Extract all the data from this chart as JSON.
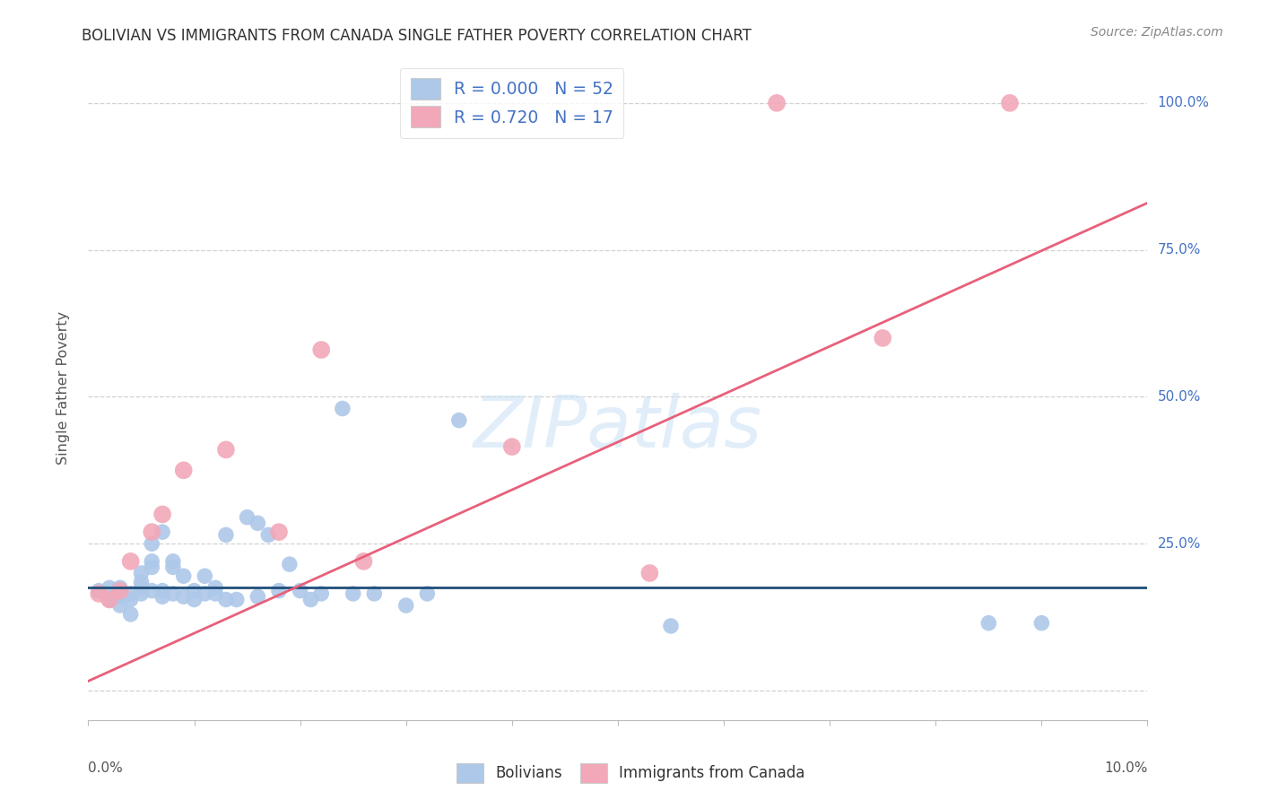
{
  "title": "BOLIVIAN VS IMMIGRANTS FROM CANADA SINGLE FATHER POVERTY CORRELATION CHART",
  "source": "Source: ZipAtlas.com",
  "ylabel": "Single Father Poverty",
  "ytick_values": [
    0.0,
    0.25,
    0.5,
    0.75,
    1.0
  ],
  "ytick_labels": [
    "",
    "25.0%",
    "50.0%",
    "75.0%",
    "100.0%"
  ],
  "xtick_values": [
    0.0,
    0.01,
    0.02,
    0.03,
    0.04,
    0.05,
    0.06,
    0.07,
    0.08,
    0.09,
    0.1
  ],
  "xlim": [
    0.0,
    0.1
  ],
  "ylim": [
    -0.05,
    1.08
  ],
  "blue_color": "#adc8e8",
  "pink_color": "#f2a8b8",
  "blue_line_color": "#1f4e79",
  "pink_line_color": "#e8607a",
  "legend_label_color": "#4472c4",
  "ytick_color": "#4472c4",
  "watermark_color": "#cde4f5",
  "blue_scatter_x": [
    0.001,
    0.002,
    0.002,
    0.003,
    0.003,
    0.003,
    0.004,
    0.004,
    0.004,
    0.005,
    0.005,
    0.005,
    0.005,
    0.006,
    0.006,
    0.006,
    0.006,
    0.007,
    0.007,
    0.007,
    0.008,
    0.008,
    0.008,
    0.009,
    0.009,
    0.01,
    0.01,
    0.011,
    0.011,
    0.012,
    0.012,
    0.013,
    0.013,
    0.014,
    0.015,
    0.016,
    0.016,
    0.017,
    0.018,
    0.019,
    0.02,
    0.021,
    0.022,
    0.024,
    0.025,
    0.027,
    0.03,
    0.032,
    0.035,
    0.055,
    0.085,
    0.09
  ],
  "blue_scatter_y": [
    0.17,
    0.155,
    0.175,
    0.16,
    0.145,
    0.175,
    0.155,
    0.13,
    0.165,
    0.175,
    0.2,
    0.165,
    0.185,
    0.17,
    0.21,
    0.22,
    0.25,
    0.17,
    0.16,
    0.27,
    0.21,
    0.22,
    0.165,
    0.16,
    0.195,
    0.155,
    0.17,
    0.165,
    0.195,
    0.165,
    0.175,
    0.155,
    0.265,
    0.155,
    0.295,
    0.285,
    0.16,
    0.265,
    0.17,
    0.215,
    0.17,
    0.155,
    0.165,
    0.48,
    0.165,
    0.165,
    0.145,
    0.165,
    0.46,
    0.11,
    0.115,
    0.115
  ],
  "pink_scatter_x": [
    0.001,
    0.002,
    0.003,
    0.004,
    0.006,
    0.007,
    0.009,
    0.013,
    0.018,
    0.022,
    0.026,
    0.04,
    0.053,
    0.065,
    0.075,
    0.087
  ],
  "pink_scatter_y": [
    0.165,
    0.155,
    0.17,
    0.22,
    0.27,
    0.3,
    0.375,
    0.41,
    0.27,
    0.58,
    0.22,
    0.415,
    0.2,
    1.0,
    0.6,
    1.0
  ],
  "blue_line_x": [
    0.0,
    0.1
  ],
  "blue_line_y": [
    0.175,
    0.175
  ],
  "pink_line_x": [
    -0.002,
    0.1
  ],
  "pink_line_y": [
    0.0,
    0.83
  ]
}
